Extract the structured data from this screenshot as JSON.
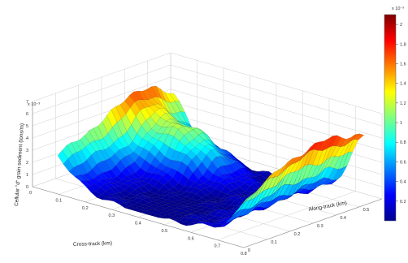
{
  "chart_data": {
    "type": "surface",
    "title": "",
    "xlabel": "Cross-track (km)",
    "ylabel": "Along-track (km)",
    "zlabel": "Cellular \"d\" grain sediment (tons/m)",
    "z_exponent": "x 10⁻³",
    "colorbar_exponent": "x 10⁻³",
    "x_ticks": [
      "0",
      "0.1",
      "0.2",
      "0.3",
      "0.4",
      "0.5",
      "0.6",
      "0.7",
      "0.8"
    ],
    "y_ticks": [
      "0",
      "0.1",
      "0.2",
      "0.3",
      "0.4",
      "0.5",
      "0.6"
    ],
    "z_ticks": [
      "0",
      "1",
      "2",
      "3",
      "4",
      "5",
      "6",
      "7"
    ],
    "colorbar_ticks": [
      "0.2",
      "0.4",
      "0.6",
      "0.8",
      "1",
      "1.2",
      "1.4",
      "1.6",
      "1.8",
      "2"
    ],
    "colorbar_range": [
      0,
      2.1
    ],
    "grid": true,
    "colormap": [
      "#00008f",
      "#0000ff",
      "#007fff",
      "#00ffff",
      "#7fff7f",
      "#ffff00",
      "#ff7f00",
      "#ff0000",
      "#7f0000"
    ],
    "surface_shape": "channel: high ridges at both cross-track edges, deep central trough along the along-track direction",
    "surface_z_range": [
      0,
      2.1
    ]
  }
}
